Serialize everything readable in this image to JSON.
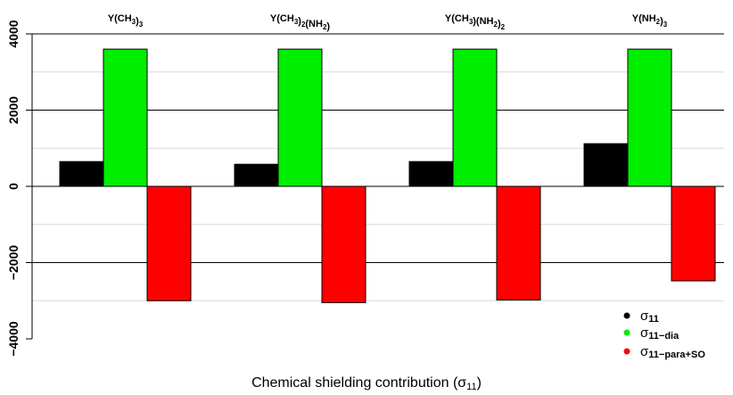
{
  "chart_data": {
    "type": "bar",
    "categories": [
      "Y(CH3)3",
      "Y(CH3)2(NH2)",
      "Y(CH3)(NH2)2",
      "Y(NH2)3"
    ],
    "category_labels": [
      [
        [
          "Y(CH",
          ""
        ],
        [
          "3",
          "sub"
        ],
        [
          ")",
          ""
        ],
        [
          "3",
          "sub"
        ]
      ],
      [
        [
          "Y(CH",
          ""
        ],
        [
          "3",
          "sub"
        ],
        [
          ")",
          ""
        ],
        [
          "2",
          "sub"
        ],
        [
          "(NH",
          ""
        ],
        [
          "2",
          "sub"
        ],
        [
          ")",
          ""
        ]
      ],
      [
        [
          "Y(CH",
          ""
        ],
        [
          "3",
          "sub"
        ],
        [
          ")(NH",
          ""
        ],
        [
          "2",
          "sub"
        ],
        [
          ")",
          ""
        ],
        [
          "2",
          "sub"
        ]
      ],
      [
        [
          "Y(NH",
          ""
        ],
        [
          "2",
          "sub"
        ],
        [
          ")",
          ""
        ],
        [
          "3",
          "sub"
        ]
      ]
    ],
    "series": [
      {
        "name": "σ11",
        "sub": "11",
        "color": "#000000",
        "values": [
          650,
          580,
          650,
          1120
        ]
      },
      {
        "name": "σ11-dia",
        "sub": "11−dia",
        "color": "#00ee00",
        "values": [
          3600,
          3600,
          3600,
          3600
        ]
      },
      {
        "name": "σ11-para+SO",
        "sub": "11−para+SO",
        "color": "#ff0000",
        "values": [
          -3000,
          -3050,
          -2980,
          -2480
        ]
      }
    ],
    "ylim": [
      -4000,
      4000
    ],
    "yticks": [
      -4000,
      -2000,
      0,
      2000,
      4000
    ],
    "ytick_labels": [
      "−4000",
      "−2000",
      "0",
      "2000",
      "4000"
    ],
    "minor_gridlines": [
      -3000,
      -1000,
      1000,
      3000
    ],
    "grid": true,
    "legend_placement": "bottom-right",
    "xlabel": "Chemical shielding contribution (σ11)",
    "xlabel_main": "Chemical shielding contribution (",
    "xlabel_sigma": "σ",
    "xlabel_sub": "11",
    "xlabel_close": ")",
    "title": "",
    "ylabel": ""
  }
}
